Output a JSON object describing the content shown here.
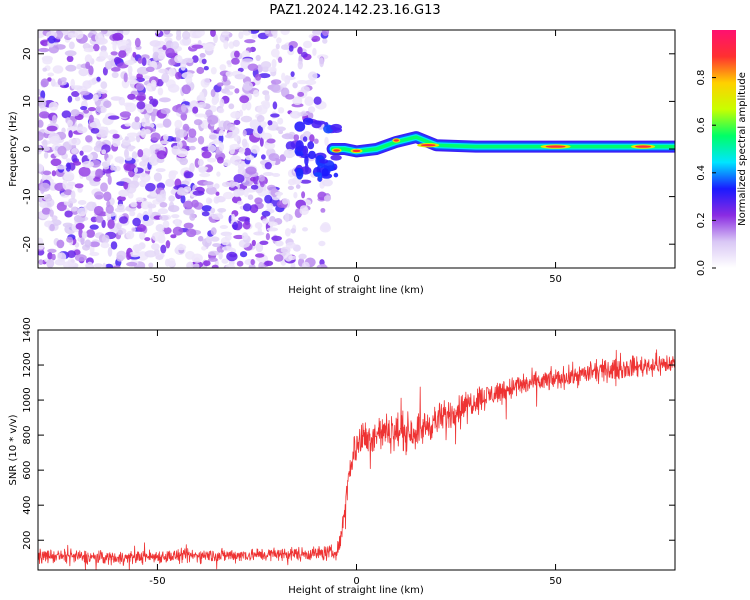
{
  "title": "PAZ1.2024.142.23.16.G13",
  "chart_data": [
    {
      "type": "heatmap",
      "xlabel": "Height of straight line (km)",
      "ylabel": "Frequency (Hz)",
      "xlim": [
        -80,
        80
      ],
      "ylim": [
        -25,
        25
      ],
      "x_ticks": [
        -50,
        0,
        50
      ],
      "y_ticks": [
        -20,
        -10,
        0,
        10,
        20
      ],
      "colorbar": {
        "label": "Normalized spectral amplitude",
        "range": [
          0,
          1
        ],
        "ticks": [
          0.0,
          0.2,
          0.4,
          0.6,
          0.8
        ],
        "colors": [
          "#ffffff",
          "#d9c7f5",
          "#8a2be2",
          "#1a1aff",
          "#00e5ff",
          "#00ff66",
          "#c8ff00",
          "#ffd000",
          "#ff3030",
          "#ff1070"
        ]
      },
      "features": [
        {
          "name": "noise",
          "x_range": [
            -80,
            -7
          ],
          "freq_range": [
            -25,
            25
          ],
          "amplitude": [
            0.05,
            0.3
          ]
        },
        {
          "name": "signal-track",
          "x": [
            -6,
            -3,
            0,
            5,
            10,
            15,
            20,
            30,
            80
          ],
          "freq": [
            0,
            0,
            -0.5,
            0,
            1.5,
            2.5,
            0.8,
            0.5,
            0.5
          ],
          "amplitude_peak": 0.9
        }
      ]
    },
    {
      "type": "line",
      "xlabel": "Height of straight line (km)",
      "ylabel": "SNR (10 * v/v)",
      "xlim": [
        -80,
        80
      ],
      "ylim": [
        30,
        1400
      ],
      "x_ticks": [
        -50,
        0,
        50
      ],
      "y_ticks": [
        200,
        400,
        600,
        800,
        1000,
        1200,
        1400
      ],
      "series": [
        {
          "color": "#ee3333",
          "x": [
            -80,
            -70,
            -60,
            -50,
            -40,
            -30,
            -20,
            -10,
            -5,
            -4,
            -3,
            -2,
            -1,
            0,
            2,
            5,
            10,
            15,
            20,
            30,
            40,
            50,
            60,
            70,
            80
          ],
          "values": [
            110,
            105,
            100,
            108,
            112,
            115,
            120,
            125,
            130,
            200,
            380,
            560,
            680,
            750,
            780,
            810,
            820,
            820,
            880,
            1000,
            1080,
            1120,
            1160,
            1190,
            1210
          ],
          "noise_amplitude": [
            70,
            70,
            70,
            70,
            70,
            70,
            70,
            75,
            80,
            90,
            130,
            160,
            180,
            200,
            200,
            200,
            190,
            180,
            170,
            140,
            120,
            110,
            110,
            110,
            110
          ]
        }
      ]
    }
  ]
}
